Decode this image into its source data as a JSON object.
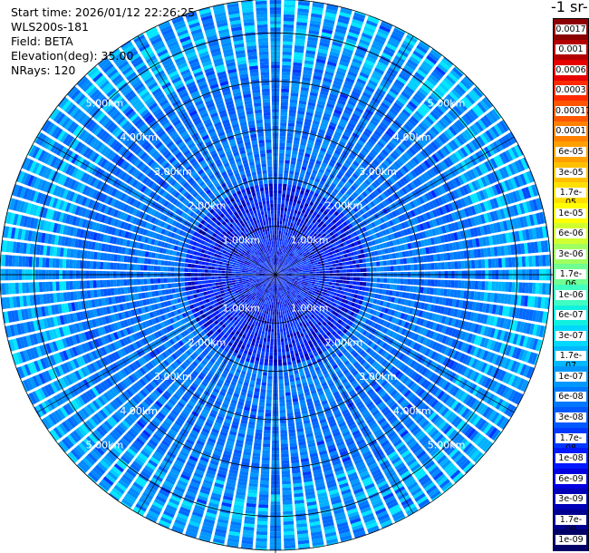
{
  "header": {
    "start_time": "Start time: 2026/01/12 22:26:25",
    "instrument": "WLS200s-181",
    "field": "Field: BETA",
    "elevation": "Elevation(deg): 35.00",
    "nrays": "NRays: 120"
  },
  "colorbar": {
    "unit_label": "-1 sr-",
    "labels": [
      "0.0017",
      "0.001",
      "0.0006",
      "0.0003",
      "0.00017",
      "0.0001",
      "6e-05",
      "3e-05",
      "1.7e-05",
      "1e-05",
      "6e-06",
      "3e-06",
      "1.7e-06",
      "1e-06",
      "6e-07",
      "3e-07",
      "1.7e-07",
      "1e-07",
      "6e-08",
      "3e-08",
      "1.7e-08",
      "1e-08",
      "6e-09",
      "3e-09",
      "1.7e-09",
      "1e-09"
    ],
    "colors": [
      "#8b0000",
      "#b30000",
      "#e60000",
      "#ff2a00",
      "#ff5500",
      "#ff8000",
      "#ff9f00",
      "#ffbf00",
      "#ffdf00",
      "#ffff00",
      "#d0ff30",
      "#a0ff60",
      "#70ff90",
      "#40ffc0",
      "#10f0e0",
      "#00d8ff",
      "#00b8ff",
      "#0098ff",
      "#0078ff",
      "#0058ff",
      "#0038ff",
      "#0018ff",
      "#0000e0",
      "#0000b8",
      "#000090",
      "#000066"
    ]
  },
  "chart_data": {
    "type": "heatmap",
    "projection": "polar PPI scan",
    "field": "BETA",
    "elevation_deg": 35.0,
    "n_rays": 120,
    "range_rings_km": [
      1,
      2,
      3,
      4,
      5
    ],
    "ring_labels": [
      "1.00km",
      "2.00km",
      "3.00km",
      "4.00km",
      "5.00km"
    ],
    "max_range_km": 5.7,
    "color_scale": "log",
    "value_range": [
      1e-09,
      0.0017
    ],
    "dominant_value_range": [
      1e-08,
      1e-07
    ]
  }
}
